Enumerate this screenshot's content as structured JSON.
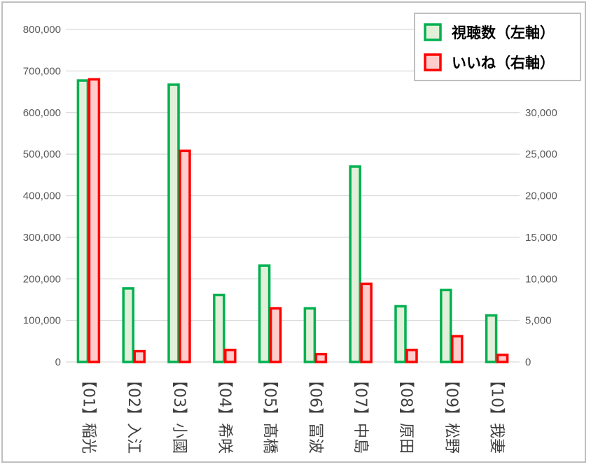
{
  "chart_data": {
    "type": "bar",
    "categories": [
      "【01】稲光",
      "【02】入江",
      "【03】小國",
      "【04】希咲",
      "【05】髙橋",
      "【06】冨波",
      "【07】中島",
      "【08】原田",
      "【09】松野",
      "【10】我妻"
    ],
    "series": [
      {
        "name": "視聴数（左軸）",
        "axis": "left",
        "values": [
          677000,
          177000,
          667000,
          161000,
          232000,
          129000,
          470000,
          134000,
          173000,
          112000
        ],
        "fill": "#e2f0d9",
        "stroke": "#00b050"
      },
      {
        "name": "いいね（右軸）",
        "axis": "right",
        "values": [
          34000,
          1300,
          25400,
          1450,
          6450,
          950,
          9400,
          1450,
          3100,
          850
        ],
        "fill": "#ffcccc",
        "stroke": "#ff0000"
      }
    ],
    "y_left": {
      "ylim": [
        0,
        800000
      ],
      "ticks": [
        "0",
        "100,000",
        "200,000",
        "300,000",
        "400,000",
        "500,000",
        "600,000",
        "700,000",
        "800,000"
      ]
    },
    "y_right": {
      "ylim": [
        0,
        40000
      ],
      "ticks": [
        "0",
        "5,000",
        "10,000",
        "15,000",
        "20,000",
        "25,000",
        "30,000"
      ]
    },
    "grid": true,
    "legend_position": "top-right",
    "xlabel": "",
    "ylabel": ""
  }
}
